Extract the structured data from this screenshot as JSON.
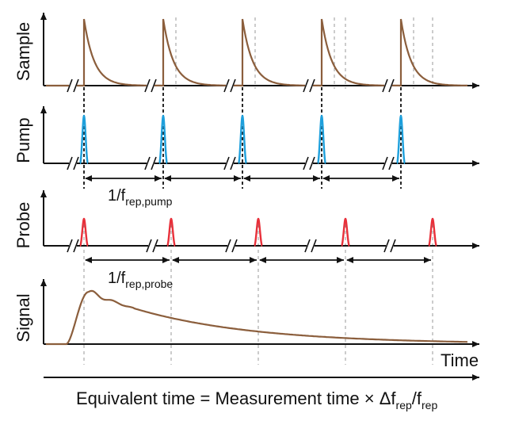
{
  "panels": {
    "sample": {
      "ylabel": "Sample"
    },
    "pump": {
      "ylabel": "Pump"
    },
    "probe": {
      "ylabel": "Probe"
    },
    "signal": {
      "ylabel": "Signal"
    }
  },
  "pump_period": {
    "text": "1/f",
    "sub": "rep,pump"
  },
  "probe_period": {
    "text": "1/f",
    "sub": "rep,probe"
  },
  "time_label": "Time",
  "caption": {
    "main": "Equivalent time = Measurement time × Δf",
    "sub1": "rep",
    "slash": "/f",
    "sub2": "rep"
  },
  "colors": {
    "sample": "#8b5e3c",
    "pump": "#1ea0dc",
    "probe": "#e8303a",
    "axis": "#111111",
    "guide": "#9a9a9a"
  }
}
